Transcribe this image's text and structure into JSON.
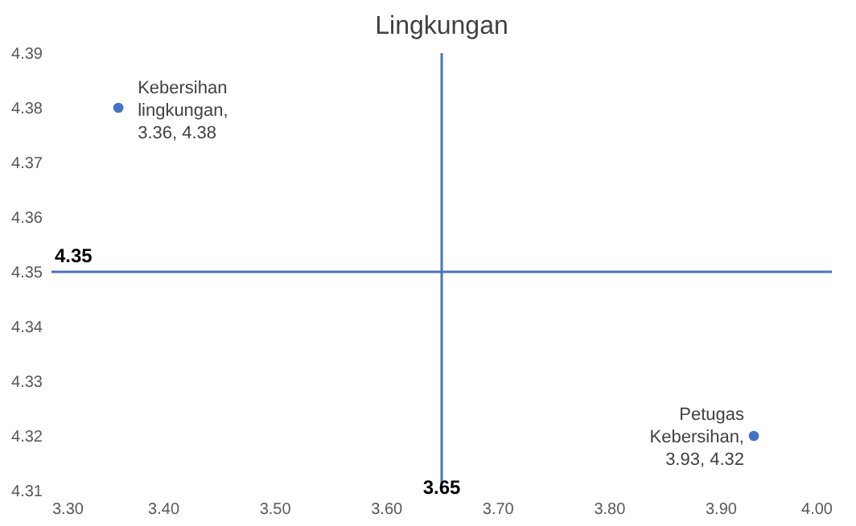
{
  "chart_data": {
    "type": "scatter",
    "title": "Lingkungan",
    "x": [
      3.36,
      3.93
    ],
    "values": [
      4.38,
      4.32
    ],
    "color": "#4472c4",
    "marker": "circle",
    "value_labels": [
      "Kebersihan lingkungan, 3.36, 4.38",
      "Petugas Kebersihan, 3.93, 4.32"
    ],
    "xlim": [
      3.3,
      4.0
    ],
    "xticks": [
      {
        "value": 3.3,
        "label": "3.30"
      },
      {
        "value": 3.4,
        "label": "3.40"
      },
      {
        "value": 3.5,
        "label": "3.50"
      },
      {
        "value": 3.6,
        "label": "3.60"
      },
      {
        "value": 3.7,
        "label": "3.70"
      },
      {
        "value": 3.8,
        "label": "3.80"
      },
      {
        "value": 3.9,
        "label": "3.90"
      },
      {
        "value": 4.0,
        "label": "4.00"
      }
    ],
    "ylim": [
      4.31,
      4.39
    ],
    "yticks": [
      4.31,
      4.32,
      4.33,
      4.34,
      4.35,
      4.36,
      4.37,
      4.38,
      4.39
    ],
    "ref_lines": [
      {
        "axis": "x",
        "value": 3.65,
        "label": "3.65",
        "color": "#4a72b8"
      },
      {
        "axis": "y",
        "value": 4.35,
        "label": "4.35",
        "color": "#4a72b8"
      }
    ],
    "grid": false
  }
}
